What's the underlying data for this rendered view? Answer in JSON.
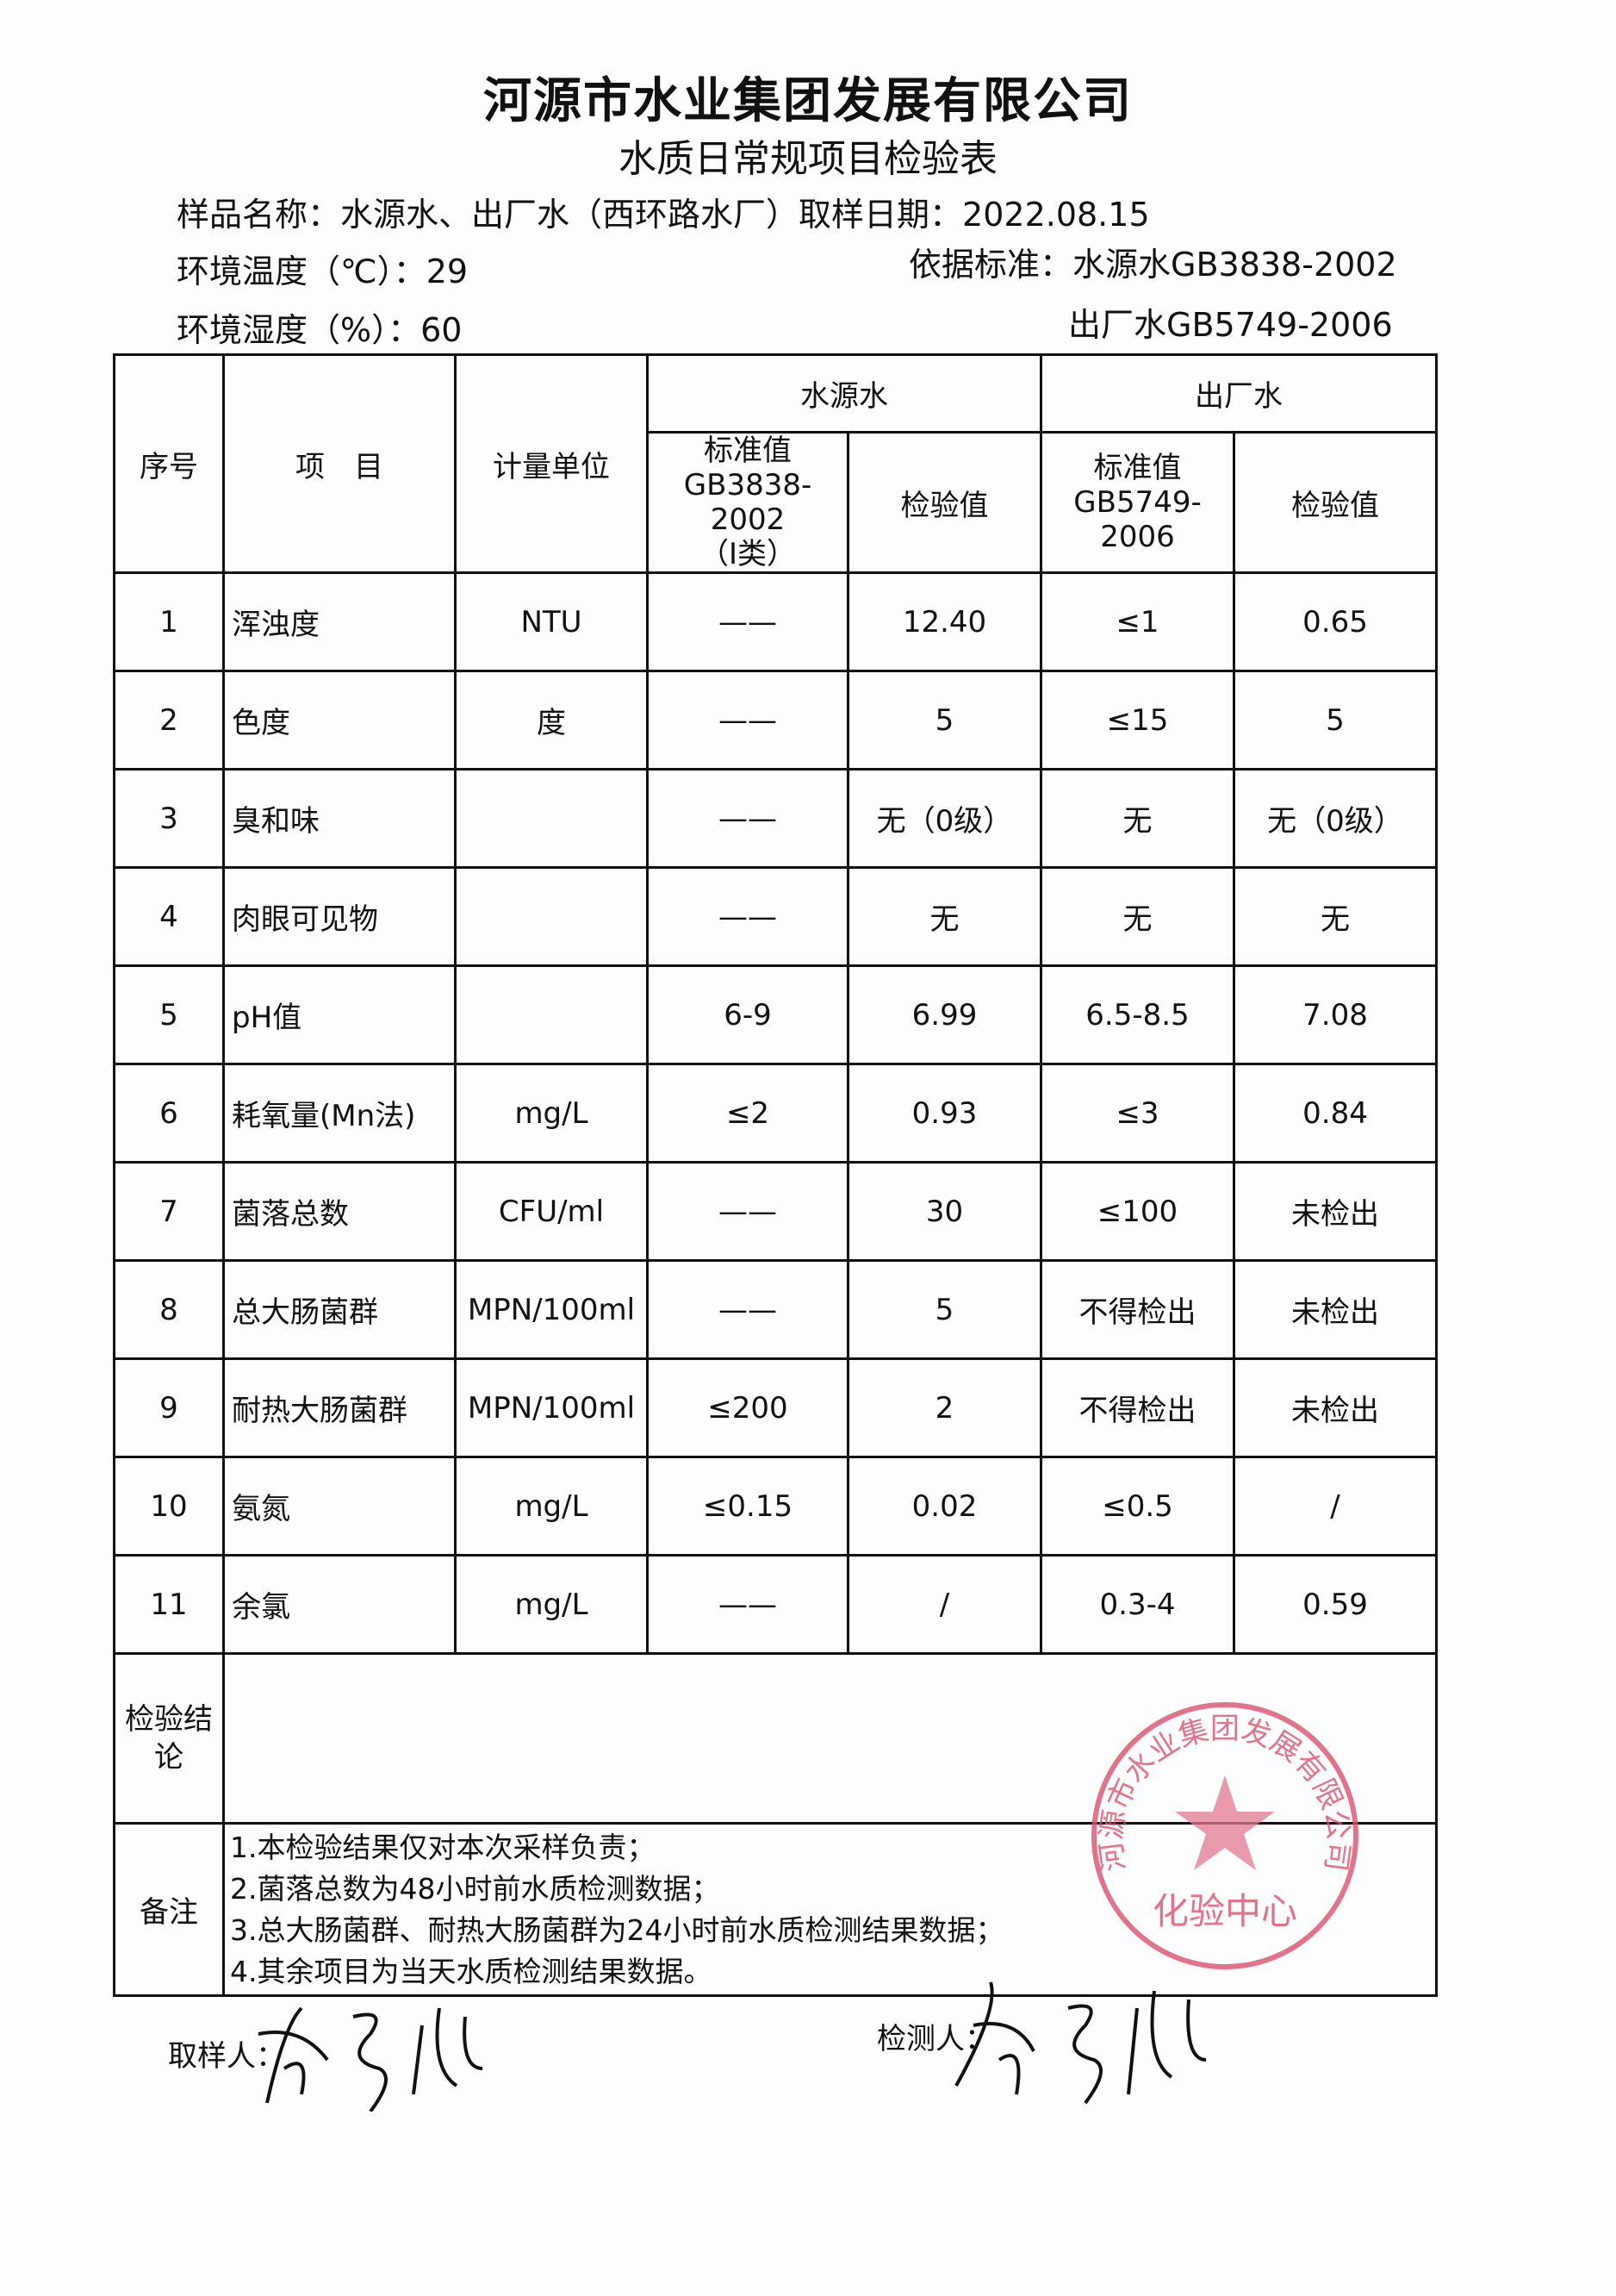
{
  "header": {
    "company": "河源市水业集团发展有限公司",
    "form_title": "水质日常规项目检验表",
    "sample_name_label": "样品名称：",
    "sample_name": "水源水、出厂水（西环路水厂）",
    "sample_date_label": "取样日期：",
    "sample_date": "2022.08.15",
    "temp_label": "环境温度（℃）：",
    "temp": "29",
    "humidity_label": "环境湿度（%）：",
    "humidity": "60",
    "standard_label": "依据标准：",
    "standard_source": "水源水GB3838-2002",
    "standard_treated": "出厂水GB5749-2006"
  },
  "table": {
    "headers": {
      "no": "序号",
      "item": "项　目",
      "unit": "计量单位",
      "source_group": "水源水",
      "treated_group": "出厂水",
      "source_std_line1": "标准值",
      "source_std_line2": "GB3838-2002",
      "source_std_line3": "（Ⅰ类）",
      "source_val": "检验值",
      "treated_std_line1": "标准值",
      "treated_std_line2": "GB5749-2006",
      "treated_val": "检验值"
    },
    "rows": [
      {
        "no": "1",
        "item": "浑浊度",
        "unit": "NTU",
        "src_std": "——",
        "src_val": "12.40",
        "trt_std": "≤1",
        "trt_val": "0.65"
      },
      {
        "no": "2",
        "item": "色度",
        "unit": "度",
        "src_std": "——",
        "src_val": "5",
        "trt_std": "≤15",
        "trt_val": "5"
      },
      {
        "no": "3",
        "item": "臭和味",
        "unit": "",
        "src_std": "——",
        "src_val": "无（0级）",
        "trt_std": "无",
        "trt_val": "无（0级）"
      },
      {
        "no": "4",
        "item": "肉眼可见物",
        "unit": "",
        "src_std": "——",
        "src_val": "无",
        "trt_std": "无",
        "trt_val": "无"
      },
      {
        "no": "5",
        "item": "pH值",
        "unit": "",
        "src_std": "6-9",
        "src_val": "6.99",
        "trt_std": "6.5-8.5",
        "trt_val": "7.08"
      },
      {
        "no": "6",
        "item": "耗氧量(Mn法)",
        "unit": "mg/L",
        "src_std": "≤2",
        "src_val": "0.93",
        "trt_std": "≤3",
        "trt_val": "0.84"
      },
      {
        "no": "7",
        "item": "菌落总数",
        "unit": "CFU/ml",
        "src_std": "——",
        "src_val": "30",
        "trt_std": "≤100",
        "trt_val": "未检出"
      },
      {
        "no": "8",
        "item": "总大肠菌群",
        "unit": "MPN/100ml",
        "src_std": "——",
        "src_val": "5",
        "trt_std": "不得检出",
        "trt_val": "未检出"
      },
      {
        "no": "9",
        "item": "耐热大肠菌群",
        "unit": "MPN/100ml",
        "src_std": "≤200",
        "src_val": "2",
        "trt_std": "不得检出",
        "trt_val": "未检出"
      },
      {
        "no": "10",
        "item": "氨氮",
        "unit": "mg/L",
        "src_std": "≤0.15",
        "src_val": "0.02",
        "trt_std": "≤0.5",
        "trt_val": "/"
      },
      {
        "no": "11",
        "item": "余氯",
        "unit": "mg/L",
        "src_std": "——",
        "src_val": "/",
        "trt_std": "0.3-4",
        "trt_val": "0.59"
      }
    ],
    "conclusion_label": "检验结论",
    "conclusion": "",
    "notes_label": "备注",
    "notes": [
      "1.本检验结果仅对本次采样负责；",
      "2.菌落总数为48小时前水质检测数据；",
      "3.总大肠菌群、耐热大肠菌群为24小时前水质检测结果数据；",
      "4.其余项目为当天水质检测结果数据。"
    ]
  },
  "stamp": {
    "ring_text": "河源市水业集团发展有限公司",
    "center_text": "化验中心",
    "color": "#d9506e"
  },
  "signatures": {
    "sampler_label": "取样人：",
    "tester_label": "检测人："
  }
}
